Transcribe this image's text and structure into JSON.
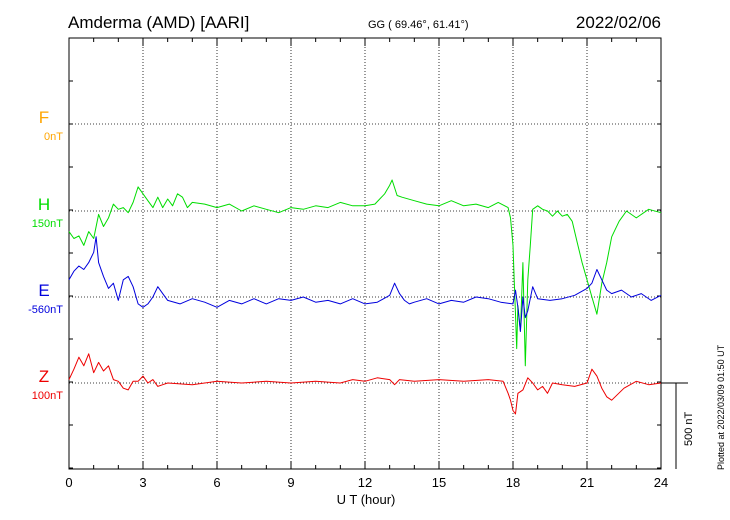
{
  "header": {
    "station": "Amderma (AMD)  [AARI]",
    "coords": "GG ( 69.46°,  61.41°)",
    "date": "2022/02/06"
  },
  "footer": {
    "plotted": "Plotted at 2022/03/09 01:50 UT"
  },
  "chart_data": {
    "type": "line",
    "title": "Amderma (AMD)  [AARI]",
    "xlabel": "U T (hour)",
    "ylabel": "",
    "xlim": [
      0,
      24
    ],
    "x_ticks": [
      "0",
      "3",
      "6",
      "9",
      "12",
      "15",
      "18",
      "21",
      "24"
    ],
    "grid": true,
    "scale_bar_label": "500 nT",
    "scale_bar_nT": 500,
    "series": [
      {
        "name": "F",
        "baseline_label": "0nT",
        "color": "#ffa500",
        "x": [],
        "y": []
      },
      {
        "name": "H",
        "baseline_label": "150nT",
        "color": "#00dd00",
        "x": [
          0,
          0.2,
          0.4,
          0.6,
          0.8,
          1.0,
          1.2,
          1.4,
          1.6,
          1.8,
          2.0,
          2.2,
          2.4,
          2.6,
          2.8,
          3.0,
          3.2,
          3.4,
          3.6,
          3.8,
          4.0,
          4.2,
          4.4,
          4.6,
          4.8,
          5.0,
          5.5,
          6.0,
          6.5,
          7.0,
          7.5,
          8.0,
          8.5,
          9.0,
          9.5,
          10.0,
          10.5,
          11.0,
          11.5,
          12.0,
          12.4,
          12.8,
          13.0,
          13.1,
          13.3,
          13.5,
          14.0,
          14.5,
          15.0,
          15.5,
          16.0,
          16.5,
          17.0,
          17.4,
          17.8,
          17.9,
          18.0,
          18.05,
          18.1,
          18.15,
          18.2,
          18.3,
          18.4,
          18.5,
          18.6,
          18.7,
          18.8,
          19.0,
          19.2,
          19.4,
          19.6,
          19.8,
          20.0,
          20.2,
          20.4,
          20.6,
          20.8,
          21.0,
          21.2,
          21.4,
          21.6,
          21.8,
          22.0,
          22.3,
          22.6,
          23.0,
          23.5,
          24.0
        ],
        "y": [
          -120,
          -160,
          -145,
          -200,
          -120,
          -160,
          -20,
          -90,
          -40,
          40,
          10,
          20,
          -10,
          50,
          140,
          100,
          60,
          20,
          80,
          20,
          70,
          30,
          100,
          80,
          20,
          50,
          40,
          20,
          40,
          0,
          30,
          10,
          -10,
          20,
          10,
          30,
          20,
          50,
          30,
          30,
          40,
          100,
          150,
          180,
          90,
          80,
          60,
          40,
          30,
          60,
          30,
          40,
          20,
          50,
          20,
          -40,
          -200,
          -400,
          -600,
          -800,
          -550,
          -700,
          -300,
          -900,
          -400,
          -200,
          10,
          30,
          10,
          0,
          -30,
          0,
          -30,
          -20,
          -60,
          -180,
          -300,
          -400,
          -500,
          -600,
          -420,
          -300,
          -150,
          -60,
          0,
          -40,
          10,
          -10
        ]
      },
      {
        "name": "E",
        "baseline_label": "-560nT",
        "color": "#0000dd",
        "x": [
          0,
          0.2,
          0.4,
          0.6,
          0.8,
          1.0,
          1.1,
          1.2,
          1.4,
          1.6,
          1.8,
          2.0,
          2.2,
          2.4,
          2.6,
          2.8,
          3.0,
          3.2,
          3.4,
          3.6,
          3.8,
          4.0,
          4.5,
          5.0,
          5.5,
          6.0,
          6.5,
          7.0,
          7.5,
          8.0,
          8.5,
          9.0,
          9.5,
          10.0,
          10.5,
          11.0,
          11.5,
          12.0,
          12.5,
          13.0,
          13.2,
          13.4,
          13.6,
          13.8,
          14.0,
          14.5,
          15.0,
          15.5,
          16.0,
          16.5,
          17.0,
          17.5,
          18.0,
          18.1,
          18.2,
          18.3,
          18.4,
          18.5,
          18.6,
          18.8,
          19.0,
          19.5,
          20.0,
          20.5,
          21.0,
          21.2,
          21.4,
          21.6,
          21.8,
          22.0,
          22.4,
          22.8,
          23.2,
          23.6,
          24.0
        ],
        "y": [
          100,
          150,
          180,
          160,
          200,
          260,
          350,
          200,
          120,
          50,
          80,
          -20,
          100,
          120,
          60,
          -40,
          -60,
          -40,
          0,
          60,
          20,
          -20,
          -40,
          -10,
          -30,
          -60,
          -20,
          -40,
          -10,
          -40,
          -10,
          -20,
          0,
          -30,
          -20,
          -40,
          -10,
          -40,
          -30,
          10,
          80,
          20,
          -20,
          -40,
          -30,
          -10,
          -40,
          -20,
          -30,
          0,
          -10,
          -30,
          -40,
          40,
          -60,
          -200,
          0,
          -120,
          -80,
          60,
          -10,
          -20,
          -10,
          10,
          50,
          80,
          160,
          100,
          40,
          20,
          40,
          0,
          20,
          -20,
          10
        ]
      },
      {
        "name": "Z",
        "baseline_label": "100nT",
        "color": "#ee0000",
        "x": [
          0,
          0.2,
          0.4,
          0.6,
          0.8,
          1.0,
          1.2,
          1.4,
          1.6,
          1.8,
          2.0,
          2.2,
          2.4,
          2.6,
          2.8,
          3.0,
          3.2,
          3.4,
          3.6,
          3.8,
          4.0,
          5.0,
          6.0,
          7.0,
          8.0,
          9.0,
          10.0,
          11.0,
          11.5,
          12.0,
          12.5,
          13.0,
          13.2,
          13.4,
          14.0,
          15.0,
          16.0,
          17.0,
          17.6,
          17.8,
          17.9,
          18.0,
          18.1,
          18.2,
          18.4,
          18.6,
          18.8,
          19.0,
          19.2,
          19.4,
          19.6,
          20.0,
          20.5,
          21.0,
          21.2,
          21.4,
          21.6,
          21.8,
          22.0,
          22.5,
          23.0,
          23.5,
          24.0
        ],
        "y": [
          20,
          80,
          150,
          100,
          170,
          60,
          120,
          70,
          100,
          20,
          10,
          -30,
          -40,
          10,
          10,
          40,
          0,
          20,
          -20,
          -10,
          0,
          -10,
          10,
          0,
          10,
          0,
          10,
          0,
          20,
          10,
          30,
          20,
          -10,
          20,
          10,
          20,
          10,
          20,
          10,
          -60,
          -100,
          -160,
          -180,
          -60,
          -40,
          30,
          0,
          -40,
          -20,
          -60,
          0,
          -10,
          -20,
          0,
          80,
          40,
          -30,
          -80,
          -100,
          -30,
          10,
          -10,
          0
        ]
      }
    ]
  }
}
